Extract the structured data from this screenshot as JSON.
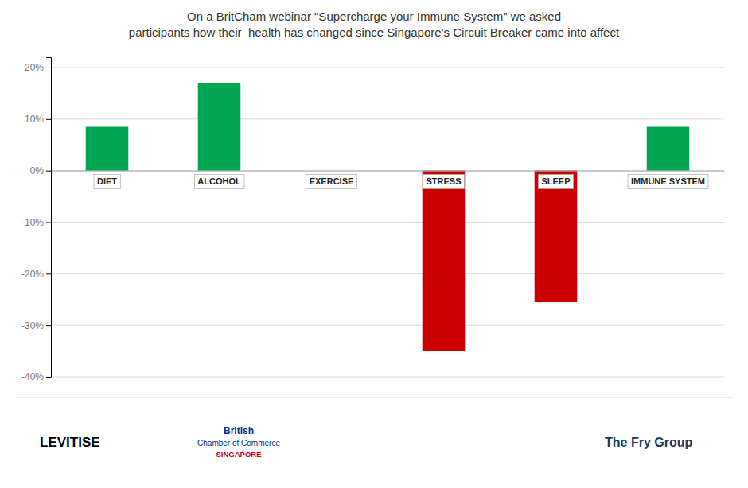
{
  "chart_data": {
    "type": "bar",
    "title": "On a BritCham webinar \"Supercharge your Immune System\" we asked\nparticipants how their  health has changed since Singapore's Circuit Breaker came into affect",
    "categories": [
      "DIET",
      "ALCOHOL",
      "EXERCISE",
      "STRESS",
      "SLEEP",
      "IMMUNE SYSTEM"
    ],
    "values": [
      8.5,
      17.0,
      0.0,
      -35.0,
      -25.5,
      8.5
    ],
    "colors": [
      "#00a651",
      "#00a651",
      "#00a651",
      "#cc0000",
      "#cc0000",
      "#00a651"
    ],
    "ylim": [
      -40,
      22
    ],
    "yticks": [
      {
        "value": -40,
        "label": "-40%"
      },
      {
        "value": -30,
        "label": "-30%"
      },
      {
        "value": -20,
        "label": "-20%"
      },
      {
        "value": -10,
        "label": "-10%"
      },
      {
        "value": 0,
        "label": "0%"
      },
      {
        "value": 10,
        "label": "10%"
      },
      {
        "value": 20,
        "label": "20%"
      }
    ],
    "grid": true,
    "annotations": [
      "LEVITISE",
      "British",
      "Chamber of Commerce",
      "SINGAPORE",
      "The Fry Group"
    ]
  }
}
